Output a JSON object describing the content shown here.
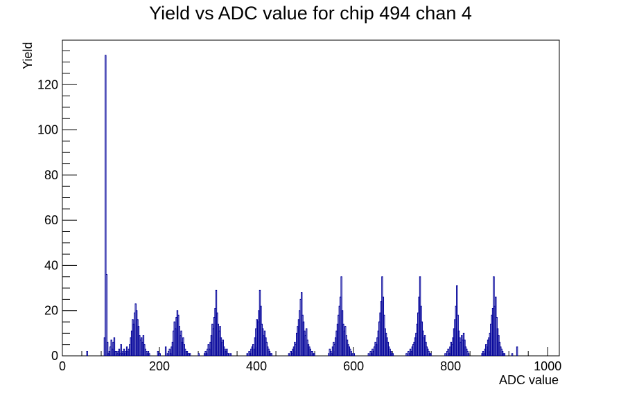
{
  "chart_data": {
    "type": "histogram",
    "title": "Yield vs ADC value for chip 494 chan 4",
    "xlabel": "ADC value",
    "ylabel": "Yield",
    "xlim": [
      0,
      1024
    ],
    "ylim": [
      0,
      139.7
    ],
    "x_ticks": [
      0,
      200,
      400,
      600,
      800,
      1000
    ],
    "y_ticks": [
      0,
      20,
      40,
      60,
      80,
      100,
      120
    ],
    "grid": false,
    "legend": "none",
    "line_color": "#000099",
    "bin_width": 2,
    "bins": [
      [
        50,
        2
      ],
      [
        86,
        8
      ],
      [
        88,
        133
      ],
      [
        90,
        36
      ],
      [
        92,
        6
      ],
      [
        94,
        1
      ],
      [
        96,
        2
      ],
      [
        98,
        4
      ],
      [
        100,
        7
      ],
      [
        102,
        3
      ],
      [
        104,
        6
      ],
      [
        106,
        8
      ],
      [
        108,
        2
      ],
      [
        110,
        2
      ],
      [
        112,
        1
      ],
      [
        114,
        2
      ],
      [
        116,
        3
      ],
      [
        118,
        1
      ],
      [
        120,
        5
      ],
      [
        122,
        1
      ],
      [
        124,
        2
      ],
      [
        126,
        3
      ],
      [
        128,
        1
      ],
      [
        130,
        2
      ],
      [
        132,
        4
      ],
      [
        134,
        2
      ],
      [
        136,
        3
      ],
      [
        138,
        5
      ],
      [
        140,
        8
      ],
      [
        142,
        11
      ],
      [
        144,
        16
      ],
      [
        146,
        14
      ],
      [
        148,
        19
      ],
      [
        150,
        23
      ],
      [
        152,
        20
      ],
      [
        154,
        16
      ],
      [
        156,
        13
      ],
      [
        158,
        9
      ],
      [
        160,
        7
      ],
      [
        162,
        8
      ],
      [
        164,
        6
      ],
      [
        166,
        9
      ],
      [
        168,
        5
      ],
      [
        170,
        3
      ],
      [
        172,
        2
      ],
      [
        174,
        1
      ],
      [
        176,
        2
      ],
      [
        178,
        1
      ],
      [
        196,
        2
      ],
      [
        198,
        1
      ],
      [
        200,
        1
      ],
      [
        212,
        4
      ],
      [
        216,
        1
      ],
      [
        218,
        2
      ],
      [
        220,
        3
      ],
      [
        222,
        1
      ],
      [
        224,
        4
      ],
      [
        226,
        6
      ],
      [
        228,
        11
      ],
      [
        230,
        15
      ],
      [
        232,
        12
      ],
      [
        234,
        17
      ],
      [
        236,
        20
      ],
      [
        238,
        18
      ],
      [
        240,
        13
      ],
      [
        242,
        9
      ],
      [
        244,
        11
      ],
      [
        246,
        6
      ],
      [
        248,
        8
      ],
      [
        250,
        5
      ],
      [
        252,
        3
      ],
      [
        254,
        2
      ],
      [
        256,
        2
      ],
      [
        258,
        1
      ],
      [
        260,
        1
      ],
      [
        262,
        1
      ],
      [
        280,
        1
      ],
      [
        292,
        1
      ],
      [
        294,
        2
      ],
      [
        296,
        1
      ],
      [
        298,
        3
      ],
      [
        300,
        5
      ],
      [
        302,
        3
      ],
      [
        304,
        6
      ],
      [
        306,
        9
      ],
      [
        308,
        14
      ],
      [
        310,
        12
      ],
      [
        312,
        17
      ],
      [
        314,
        21
      ],
      [
        316,
        29
      ],
      [
        318,
        19
      ],
      [
        320,
        14
      ],
      [
        322,
        11
      ],
      [
        324,
        13
      ],
      [
        326,
        8
      ],
      [
        328,
        6
      ],
      [
        330,
        7
      ],
      [
        332,
        4
      ],
      [
        334,
        3
      ],
      [
        336,
        2
      ],
      [
        338,
        3
      ],
      [
        340,
        1
      ],
      [
        342,
        1
      ],
      [
        346,
        1
      ],
      [
        380,
        1
      ],
      [
        384,
        2
      ],
      [
        386,
        1
      ],
      [
        388,
        3
      ],
      [
        390,
        4
      ],
      [
        392,
        5
      ],
      [
        394,
        3
      ],
      [
        396,
        8
      ],
      [
        398,
        12
      ],
      [
        400,
        16
      ],
      [
        402,
        15
      ],
      [
        404,
        20
      ],
      [
        406,
        29
      ],
      [
        408,
        22
      ],
      [
        410,
        14
      ],
      [
        412,
        12
      ],
      [
        414,
        9
      ],
      [
        416,
        11
      ],
      [
        418,
        8
      ],
      [
        420,
        6
      ],
      [
        422,
        4
      ],
      [
        424,
        3
      ],
      [
        426,
        2
      ],
      [
        428,
        1
      ],
      [
        430,
        1
      ],
      [
        466,
        1
      ],
      [
        470,
        2
      ],
      [
        472,
        1
      ],
      [
        474,
        3
      ],
      [
        476,
        4
      ],
      [
        478,
        6
      ],
      [
        480,
        5
      ],
      [
        482,
        10
      ],
      [
        484,
        13
      ],
      [
        486,
        16
      ],
      [
        488,
        20
      ],
      [
        490,
        25
      ],
      [
        492,
        28
      ],
      [
        494,
        18
      ],
      [
        496,
        15
      ],
      [
        498,
        11
      ],
      [
        500,
        9
      ],
      [
        502,
        12
      ],
      [
        504,
        7
      ],
      [
        506,
        5
      ],
      [
        508,
        4
      ],
      [
        510,
        3
      ],
      [
        512,
        2
      ],
      [
        514,
        2
      ],
      [
        516,
        1
      ],
      [
        518,
        1
      ],
      [
        548,
        1
      ],
      [
        550,
        3
      ],
      [
        552,
        2
      ],
      [
        554,
        1
      ],
      [
        556,
        4
      ],
      [
        558,
        6
      ],
      [
        560,
        5
      ],
      [
        562,
        8
      ],
      [
        564,
        11
      ],
      [
        566,
        14
      ],
      [
        568,
        18
      ],
      [
        570,
        22
      ],
      [
        572,
        26
      ],
      [
        574,
        35
      ],
      [
        576,
        20
      ],
      [
        578,
        14
      ],
      [
        580,
        11
      ],
      [
        582,
        13
      ],
      [
        584,
        9
      ],
      [
        586,
        7
      ],
      [
        588,
        5
      ],
      [
        590,
        4
      ],
      [
        592,
        3
      ],
      [
        594,
        2
      ],
      [
        596,
        1
      ],
      [
        600,
        1
      ],
      [
        630,
        1
      ],
      [
        634,
        2
      ],
      [
        636,
        1
      ],
      [
        638,
        3
      ],
      [
        640,
        2
      ],
      [
        642,
        4
      ],
      [
        644,
        6
      ],
      [
        646,
        5
      ],
      [
        648,
        8
      ],
      [
        650,
        11
      ],
      [
        652,
        15
      ],
      [
        654,
        19
      ],
      [
        656,
        24
      ],
      [
        658,
        35
      ],
      [
        660,
        26
      ],
      [
        662,
        18
      ],
      [
        664,
        12
      ],
      [
        666,
        10
      ],
      [
        668,
        8
      ],
      [
        670,
        6
      ],
      [
        672,
        4
      ],
      [
        674,
        3
      ],
      [
        676,
        2
      ],
      [
        678,
        1
      ],
      [
        680,
        1
      ],
      [
        708,
        1
      ],
      [
        712,
        2
      ],
      [
        714,
        1
      ],
      [
        716,
        3
      ],
      [
        718,
        2
      ],
      [
        720,
        4
      ],
      [
        722,
        5
      ],
      [
        724,
        6
      ],
      [
        726,
        8
      ],
      [
        728,
        10
      ],
      [
        730,
        14
      ],
      [
        732,
        19
      ],
      [
        734,
        26
      ],
      [
        736,
        35
      ],
      [
        738,
        22
      ],
      [
        740,
        15
      ],
      [
        742,
        11
      ],
      [
        744,
        8
      ],
      [
        746,
        9
      ],
      [
        748,
        6
      ],
      [
        750,
        4
      ],
      [
        752,
        3
      ],
      [
        754,
        2
      ],
      [
        756,
        1
      ],
      [
        758,
        1
      ],
      [
        788,
        1
      ],
      [
        792,
        2
      ],
      [
        794,
        3
      ],
      [
        796,
        1
      ],
      [
        798,
        4
      ],
      [
        800,
        6
      ],
      [
        802,
        5
      ],
      [
        804,
        8
      ],
      [
        806,
        12
      ],
      [
        808,
        16
      ],
      [
        810,
        22
      ],
      [
        812,
        31
      ],
      [
        814,
        18
      ],
      [
        816,
        11
      ],
      [
        818,
        8
      ],
      [
        820,
        6
      ],
      [
        822,
        9
      ],
      [
        824,
        7
      ],
      [
        826,
        10
      ],
      [
        828,
        7
      ],
      [
        830,
        4
      ],
      [
        832,
        3
      ],
      [
        834,
        2
      ],
      [
        836,
        1
      ],
      [
        864,
        1
      ],
      [
        866,
        2
      ],
      [
        868,
        1
      ],
      [
        870,
        3
      ],
      [
        872,
        5
      ],
      [
        874,
        4
      ],
      [
        876,
        7
      ],
      [
        878,
        8
      ],
      [
        880,
        10
      ],
      [
        882,
        14
      ],
      [
        884,
        18
      ],
      [
        886,
        21
      ],
      [
        888,
        35
      ],
      [
        890,
        22
      ],
      [
        892,
        26
      ],
      [
        894,
        17
      ],
      [
        896,
        12
      ],
      [
        898,
        9
      ],
      [
        900,
        6
      ],
      [
        902,
        4
      ],
      [
        904,
        3
      ],
      [
        906,
        2
      ],
      [
        908,
        1
      ],
      [
        910,
        1
      ],
      [
        926,
        1
      ],
      [
        936,
        4
      ]
    ]
  }
}
